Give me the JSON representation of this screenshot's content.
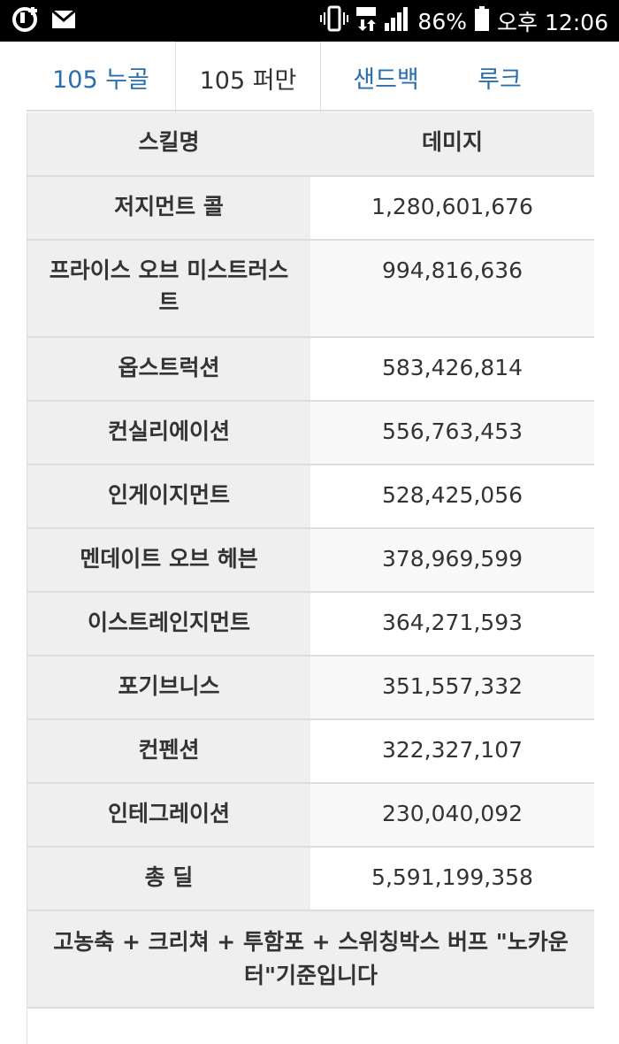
{
  "status_bar": {
    "battery": "86%",
    "time": "오후 12:06",
    "icons": [
      "u-plus-logo-icon",
      "mail-icon",
      "vibrate-icon",
      "data-4g-icon",
      "signal-icon",
      "battery-icon"
    ]
  },
  "tabs": [
    {
      "label": "105 누골",
      "active": false
    },
    {
      "label": "105 퍼만",
      "active": true
    },
    {
      "label": "샌드백",
      "active": false
    },
    {
      "label": "루크",
      "active": false
    }
  ],
  "table": {
    "headers": {
      "name": "스킬명",
      "value": "데미지"
    },
    "rows": [
      {
        "name": "저지먼트 콜",
        "value": "1,280,601,676"
      },
      {
        "name": "프라이스 오브 미스트러스트",
        "value": "994,816,636"
      },
      {
        "name": "옵스트럭션",
        "value": "583,426,814"
      },
      {
        "name": "컨실리에이션",
        "value": "556,763,453"
      },
      {
        "name": "인게이지먼트",
        "value": "528,425,056"
      },
      {
        "name": "멘데이트 오브 헤븐",
        "value": "378,969,599"
      },
      {
        "name": "이스트레인지먼트",
        "value": "364,271,593"
      },
      {
        "name": "포기브니스",
        "value": "351,557,332"
      },
      {
        "name": "컨펜션",
        "value": "322,327,107"
      },
      {
        "name": "인테그레이션",
        "value": "230,040,092"
      },
      {
        "name": "총 딜",
        "value": "5,591,199,358"
      }
    ],
    "note": "고농축 + 크리쳐 + 투함포 + 스위칭박스 버프 \"노카운터\"기준입니다"
  }
}
